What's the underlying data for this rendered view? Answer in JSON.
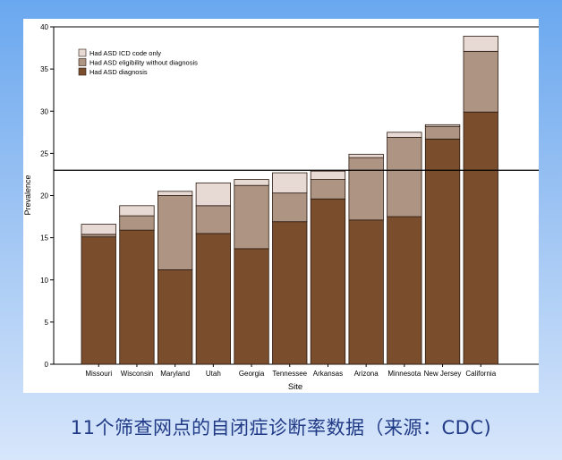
{
  "caption": "11个筛查网点的自闭症诊断率数据（来源：CDC)",
  "chart_data": {
    "type": "bar",
    "stacked": true,
    "xlabel": "Site",
    "ylabel": "Prevalence",
    "ylim": [
      0,
      40
    ],
    "yticks": [
      0,
      5,
      10,
      15,
      20,
      25,
      30,
      35,
      40
    ],
    "reference_line": 23,
    "grid": false,
    "legend_position": "top-left",
    "categories": [
      "Missouri",
      "Wisconsin",
      "Maryland",
      "Utah",
      "Georgia",
      "Tennessee",
      "Arkansas",
      "Arizona",
      "Minnesota",
      "New Jersey",
      "California"
    ],
    "series": [
      {
        "name": "Had ASD diagnosis",
        "color": "#7a4e2d",
        "values": [
          15.1,
          15.9,
          11.2,
          15.5,
          13.7,
          16.9,
          19.6,
          17.1,
          17.5,
          26.7,
          29.9
        ]
      },
      {
        "name": "Had ASD eligibility without diagnosis",
        "color": "#ad9483",
        "values": [
          0.3,
          1.7,
          8.8,
          3.3,
          7.5,
          3.4,
          2.3,
          7.4,
          9.4,
          1.5,
          7.2
        ]
      },
      {
        "name": "Had ASD ICD code only",
        "color": "#e7d9d3",
        "values": [
          1.2,
          1.2,
          0.5,
          2.7,
          0.7,
          2.4,
          1.0,
          0.4,
          0.6,
          0.2,
          1.8
        ]
      }
    ],
    "legend_order": [
      "Had ASD ICD code only",
      "Had ASD eligibility without diagnosis",
      "Had ASD diagnosis"
    ]
  }
}
